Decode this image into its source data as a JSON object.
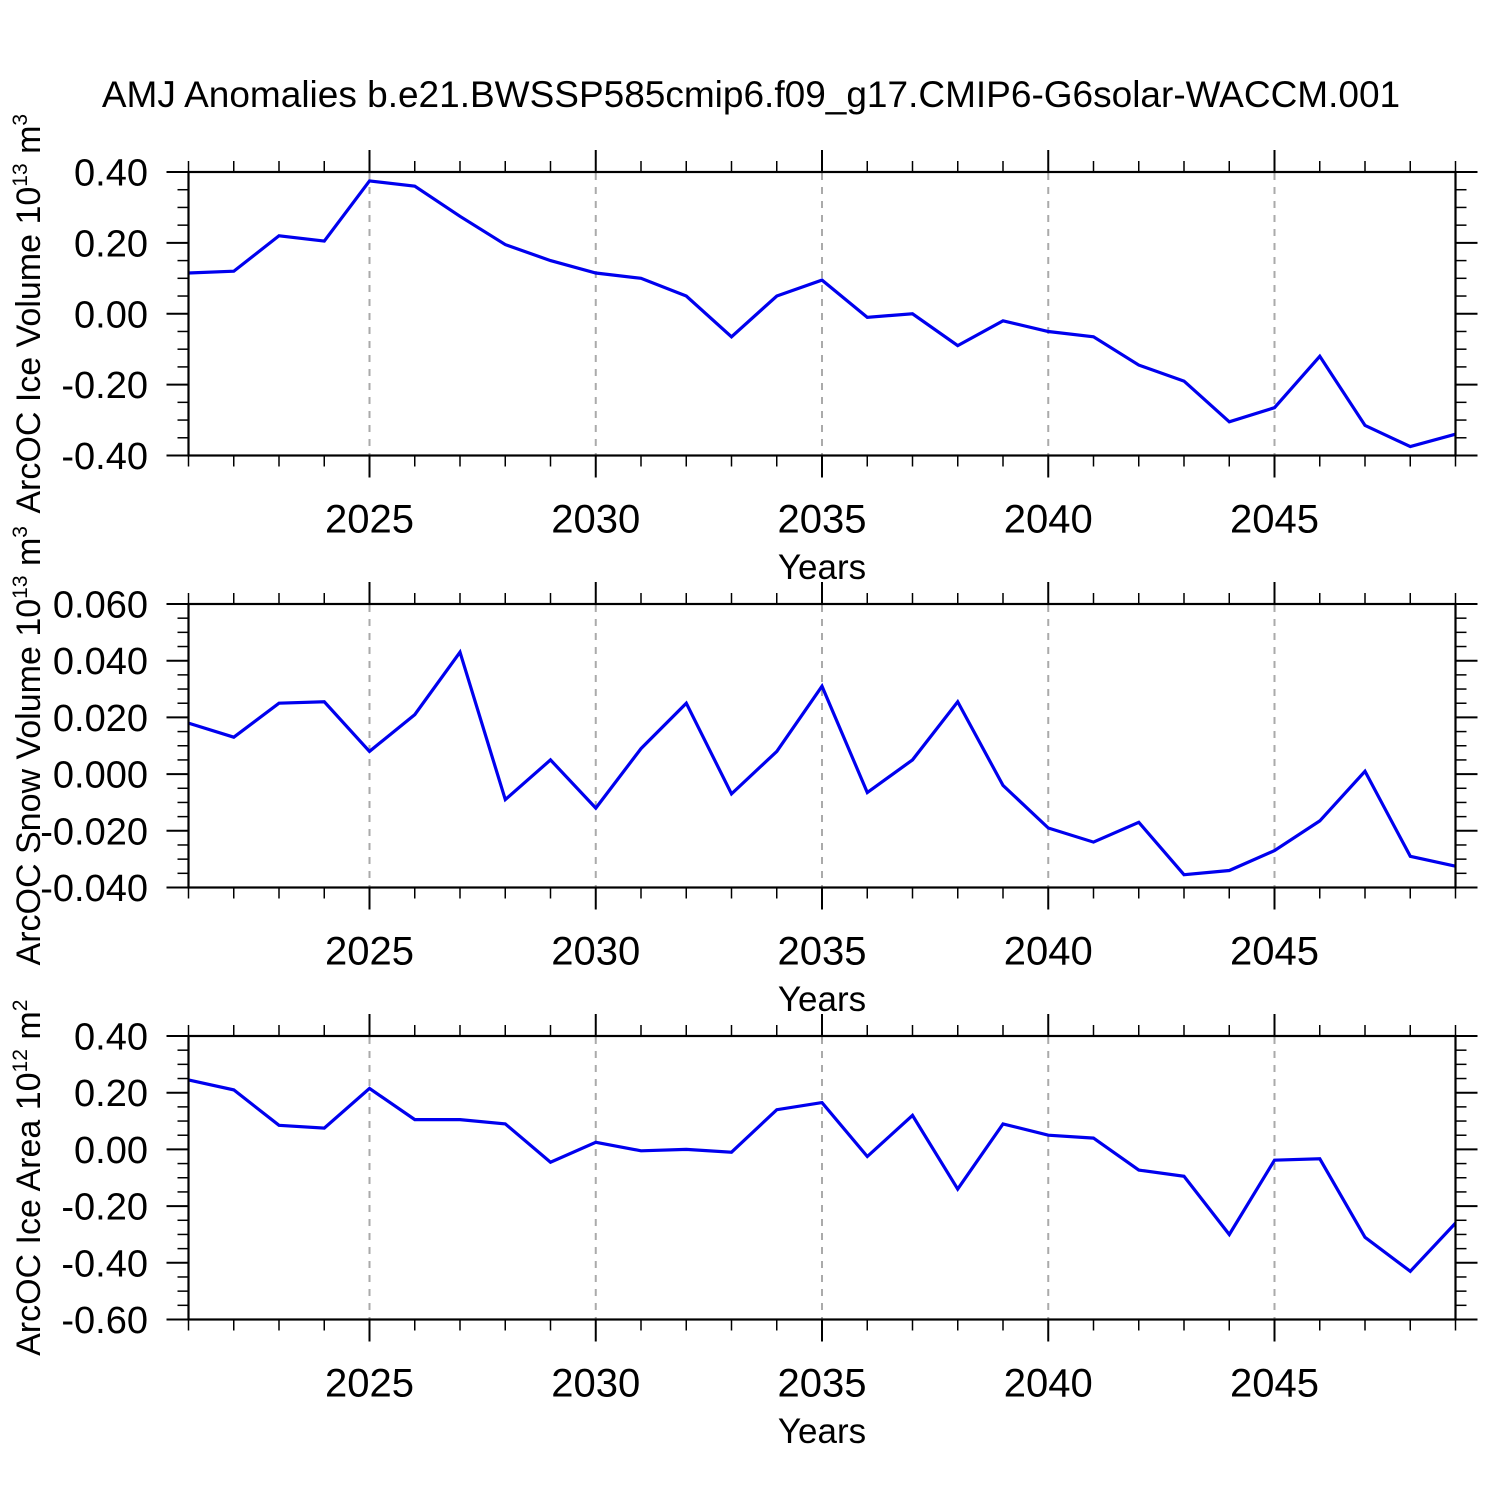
{
  "title": "AMJ Anomalies b.e21.BWSSP585cmip6.f09_g17.CMIP6-G6solar-WACCM.001",
  "colors": {
    "line": "#0000ee",
    "grid": "#aaaaaa",
    "axis": "#000000",
    "background": "#ffffff"
  },
  "chart_data": [
    {
      "type": "line",
      "name": "ice-volume",
      "ylabel": "ArcOC Ice Volume 10^13 m^3",
      "ylabel_parts": [
        {
          "t": "ArcOC Ice Volume 10"
        },
        {
          "t": "13",
          "sup": true
        },
        {
          "t": " m"
        },
        {
          "t": "3",
          "sup": true
        }
      ],
      "xlabel": "Years",
      "xlim": [
        2021,
        2049
      ],
      "ylim": [
        -0.4,
        0.4
      ],
      "x_major_ticks": [
        2025,
        2030,
        2035,
        2040,
        2045
      ],
      "x_tick_labels": [
        "2025",
        "2030",
        "2035",
        "2040",
        "2045"
      ],
      "x_minor_step": 1,
      "y_major_ticks": [
        0.4,
        0.2,
        0.0,
        -0.2,
        -0.4
      ],
      "y_tick_labels": [
        "0.40",
        "0.20",
        "0.00",
        "-0.20",
        "-0.40"
      ],
      "y_minor_step": 0.05,
      "grid": "vertical-dashed",
      "legend": "none",
      "x": [
        2021,
        2022,
        2023,
        2024,
        2025,
        2026,
        2027,
        2028,
        2029,
        2030,
        2031,
        2032,
        2033,
        2034,
        2035,
        2036,
        2037,
        2038,
        2039,
        2040,
        2041,
        2042,
        2043,
        2044,
        2045,
        2046,
        2047,
        2048,
        2049
      ],
      "values": [
        0.115,
        0.12,
        0.22,
        0.205,
        0.375,
        0.36,
        0.275,
        0.195,
        0.15,
        0.115,
        0.1,
        0.05,
        -0.065,
        0.05,
        0.095,
        -0.01,
        0.0,
        -0.09,
        -0.02,
        -0.05,
        -0.065,
        -0.145,
        -0.19,
        -0.305,
        -0.265,
        -0.12,
        -0.315,
        -0.375,
        -0.34
      ]
    },
    {
      "type": "line",
      "name": "snow-volume",
      "ylabel": "ArcOC Snow Volume 10^13 m^3",
      "ylabel_parts": [
        {
          "t": "ArcOC Snow Volume 10"
        },
        {
          "t": "13",
          "sup": true
        },
        {
          "t": " m"
        },
        {
          "t": "3",
          "sup": true
        }
      ],
      "xlabel": "Years",
      "xlim": [
        2021,
        2049
      ],
      "ylim": [
        -0.04,
        0.06
      ],
      "x_major_ticks": [
        2025,
        2030,
        2035,
        2040,
        2045
      ],
      "x_tick_labels": [
        "2025",
        "2030",
        "2035",
        "2040",
        "2045"
      ],
      "x_minor_step": 1,
      "y_major_ticks": [
        0.06,
        0.04,
        0.02,
        0.0,
        -0.02,
        -0.04
      ],
      "y_tick_labels": [
        "0.060",
        "0.040",
        "0.020",
        "0.000",
        "-0.020",
        "-0.040"
      ],
      "y_minor_step": 0.005,
      "grid": "vertical-dashed",
      "legend": "none",
      "x": [
        2021,
        2022,
        2023,
        2024,
        2025,
        2026,
        2027,
        2028,
        2029,
        2030,
        2031,
        2032,
        2033,
        2034,
        2035,
        2036,
        2037,
        2038,
        2039,
        2040,
        2041,
        2042,
        2043,
        2044,
        2045,
        2046,
        2047,
        2048,
        2049
      ],
      "values": [
        0.018,
        0.013,
        0.025,
        0.0255,
        0.008,
        0.021,
        0.043,
        -0.009,
        0.005,
        -0.012,
        0.009,
        0.025,
        -0.007,
        0.008,
        0.031,
        -0.0065,
        0.005,
        0.0255,
        -0.004,
        -0.019,
        -0.024,
        -0.017,
        -0.0355,
        -0.034,
        -0.027,
        -0.0165,
        0.001,
        -0.029,
        -0.0325
      ]
    },
    {
      "type": "line",
      "name": "ice-area",
      "ylabel": "ArcOC Ice Area 10^12 m^2",
      "ylabel_parts": [
        {
          "t": "ArcOC Ice Area 10"
        },
        {
          "t": "12",
          "sup": true
        },
        {
          "t": " m"
        },
        {
          "t": "2",
          "sup": true
        }
      ],
      "xlabel": "Years",
      "xlim": [
        2021,
        2049
      ],
      "ylim": [
        -0.6,
        0.4
      ],
      "x_major_ticks": [
        2025,
        2030,
        2035,
        2040,
        2045
      ],
      "x_tick_labels": [
        "2025",
        "2030",
        "2035",
        "2040",
        "2045"
      ],
      "x_minor_step": 1,
      "y_major_ticks": [
        0.4,
        0.2,
        0.0,
        -0.2,
        -0.4,
        -0.6
      ],
      "y_tick_labels": [
        "0.40",
        "0.20",
        "0.00",
        "-0.20",
        "-0.40",
        "-0.60"
      ],
      "y_minor_step": 0.05,
      "grid": "vertical-dashed",
      "legend": "none",
      "x": [
        2021,
        2022,
        2023,
        2024,
        2025,
        2026,
        2027,
        2028,
        2029,
        2030,
        2031,
        2032,
        2033,
        2034,
        2035,
        2036,
        2037,
        2038,
        2039,
        2040,
        2041,
        2042,
        2043,
        2044,
        2045,
        2046,
        2047,
        2048,
        2049
      ],
      "values": [
        0.245,
        0.21,
        0.085,
        0.075,
        0.215,
        0.105,
        0.105,
        0.09,
        -0.045,
        0.025,
        -0.005,
        0.0,
        -0.01,
        0.14,
        0.165,
        -0.025,
        0.12,
        -0.14,
        0.09,
        0.05,
        0.04,
        -0.073,
        -0.095,
        -0.3,
        -0.038,
        -0.033,
        -0.31,
        -0.43,
        -0.26
      ]
    }
  ]
}
